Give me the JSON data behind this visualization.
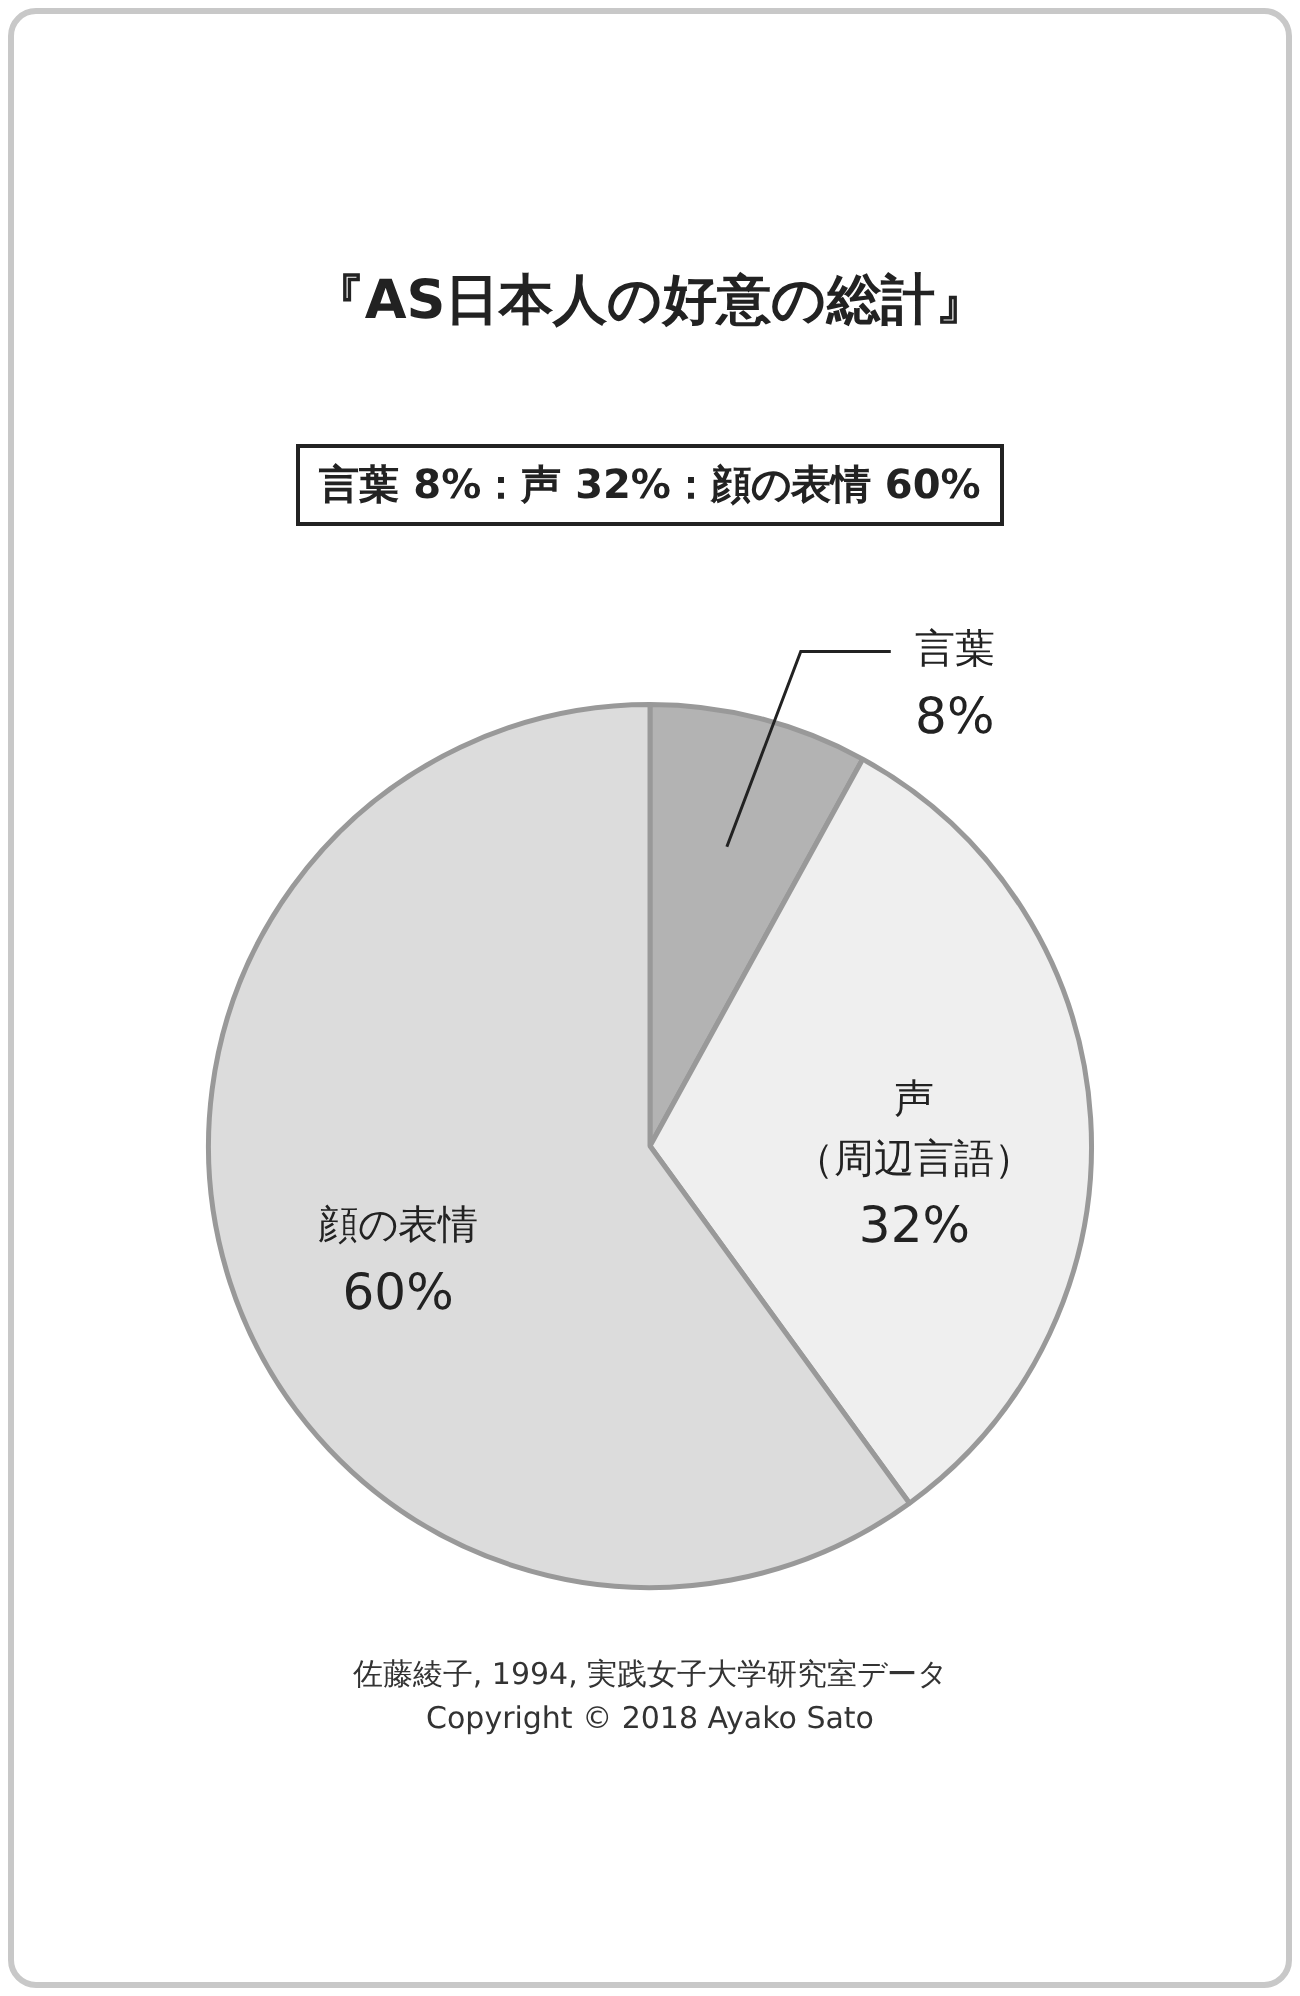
{
  "chart_data": {
    "type": "pie",
    "title": "『AS日本人の好意の総計』",
    "subtitle": "言葉 8%：声 32%：顔の表情 60%",
    "categories": [
      "言葉",
      "声（周辺言語）",
      "顔の表情"
    ],
    "values": [
      8,
      32,
      60
    ],
    "value_labels": [
      "8%",
      "32%",
      "60%"
    ],
    "colors": [
      "#b3b3b3",
      "#efefef",
      "#dcdcdc"
    ],
    "legend": false,
    "annotations": [
      "佐藤綾子, 1994, 実践女子大学研究室データ",
      "Copyright © 2018 Ayako Sato"
    ]
  }
}
